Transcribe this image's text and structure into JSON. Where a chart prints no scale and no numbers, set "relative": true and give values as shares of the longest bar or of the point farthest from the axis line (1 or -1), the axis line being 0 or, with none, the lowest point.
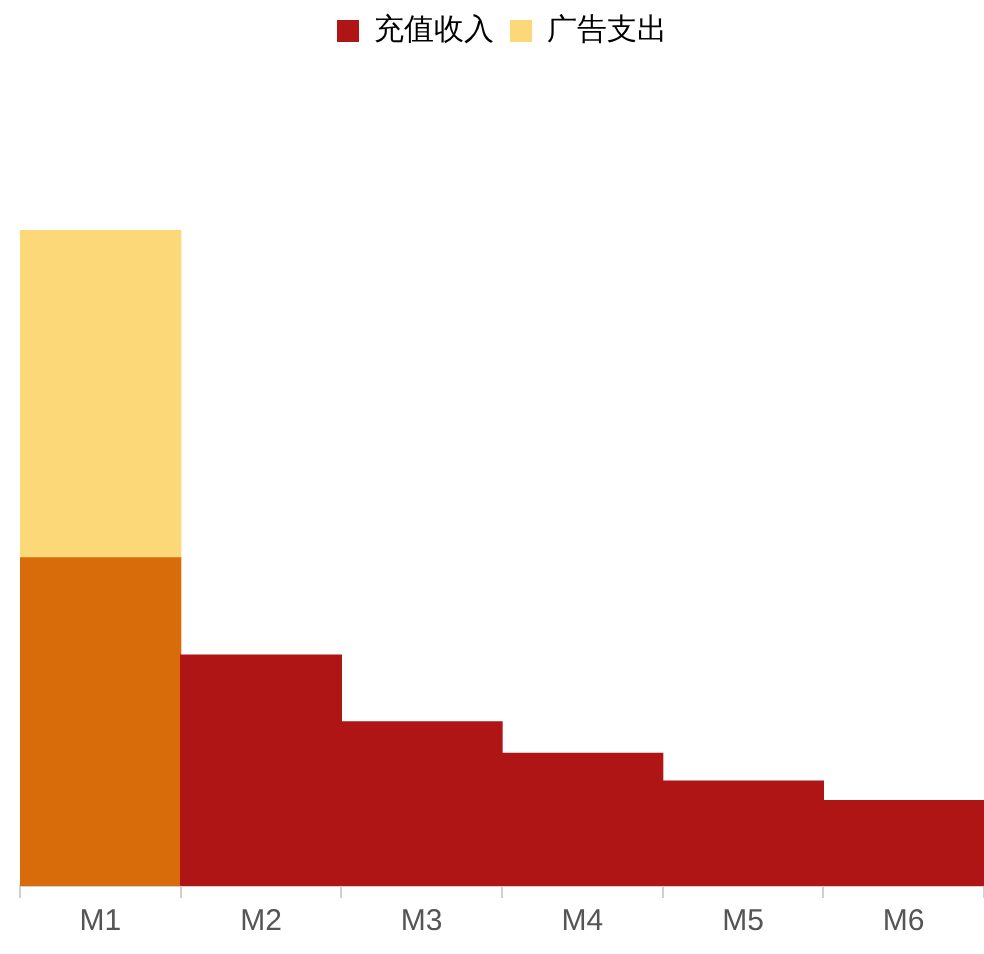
{
  "chart_data": {
    "type": "bar",
    "stacked": true,
    "relative": true,
    "legend": "top",
    "categories": [
      "M1",
      "M2",
      "M3",
      "M4",
      "M5",
      "M6"
    ],
    "series": [
      {
        "name": "充值收入",
        "color": "#b01515",
        "colors": [
          "#d86c0b",
          "#b01515",
          "#b01515",
          "#b01515",
          "#b01515",
          "#b01515"
        ],
        "values": [
          0.5,
          0.352,
          0.25,
          0.202,
          0.16,
          0.13
        ]
      },
      {
        "name": "广告支出",
        "color": "#fdd878",
        "values": [
          0.5,
          null,
          null,
          null,
          null,
          null
        ]
      }
    ]
  }
}
